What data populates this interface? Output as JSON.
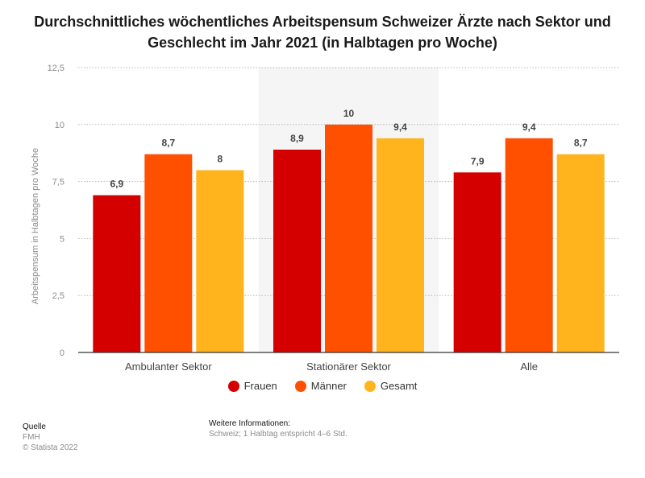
{
  "title": "Durchschnittliches wöchentliches Arbeitspensum Schweizer Ärzte nach Sektor und Geschlecht im Jahr 2021 (in Halbtagen pro Woche)",
  "footer": {
    "source_heading": "Quelle",
    "source_name": "FMH",
    "copyright": "© Statista 2022",
    "info_heading": "Weitere Informationen:",
    "info_text": "Schweiz; 1 Halbtag entspricht 4–6 Std."
  },
  "colors": {
    "Frauen": "#d40000",
    "Männer": "#ff5000",
    "Gesamt": "#ffb41e",
    "highlight_band": "#f5f5f5",
    "grid": "#b8b8b8",
    "axis": "#333333"
  },
  "chart_data": {
    "type": "bar",
    "title": "Durchschnittliches wöchentliches Arbeitspensum Schweizer Ärzte nach Sektor und Geschlecht im Jahr 2021 (in Halbtagen pro Woche)",
    "xlabel": "",
    "ylabel": "Arbeitspensum in Halbtagen pro Woche",
    "categories": [
      "Ambulanter Sektor",
      "Stationärer Sektor",
      "Alle"
    ],
    "series": [
      {
        "name": "Frauen",
        "values": [
          6.9,
          8.9,
          7.9
        ],
        "labels": [
          "6,9",
          "8,9",
          "7,9"
        ]
      },
      {
        "name": "Männer",
        "values": [
          8.7,
          10,
          9.4
        ],
        "labels": [
          "8,7",
          "10",
          "9,4"
        ]
      },
      {
        "name": "Gesamt",
        "values": [
          8,
          9.4,
          8.7
        ],
        "labels": [
          "8",
          "9,4",
          "8,7"
        ]
      }
    ],
    "ylim": [
      0,
      12.5
    ],
    "yticks": [
      0,
      2.5,
      5,
      7.5,
      10,
      12.5
    ],
    "ytick_labels": [
      "0",
      "2,5",
      "5",
      "7,5",
      "10",
      "12,5"
    ],
    "highlighted_category": "Stationärer Sektor",
    "grid": true,
    "legend_position": "bottom"
  }
}
